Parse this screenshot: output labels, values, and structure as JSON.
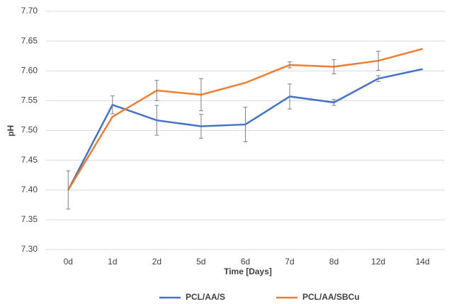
{
  "chart_data": {
    "type": "line",
    "x_label": "Time [Days]",
    "y_label": "pH",
    "categories": [
      "0d",
      "1d",
      "2d",
      "5d",
      "6d",
      "7d",
      "8d",
      "12d",
      "14d"
    ],
    "series": [
      {
        "name": "PCL/AA/S",
        "color": "#4472c4",
        "values": [
          7.4,
          7.543,
          7.517,
          7.507,
          7.51,
          7.557,
          7.547,
          7.587,
          7.603
        ],
        "errors": [
          0.032,
          0.015,
          0.025,
          0.02,
          0.029,
          0.021,
          0.005,
          0.005,
          null
        ]
      },
      {
        "name": "PCL/AA/SBCu",
        "color": "#ed7d31",
        "values": [
          7.4,
          7.523,
          7.567,
          7.56,
          7.58,
          7.61,
          7.607,
          7.617,
          7.637
        ],
        "errors": [
          null,
          null,
          0.017,
          0.027,
          null,
          0.005,
          0.012,
          0.016,
          null
        ]
      }
    ],
    "error_color": "#7f7f7f",
    "ylim": [
      7.3,
      7.7
    ],
    "yticks": [
      {
        "value": 7.3,
        "label": "7.30"
      },
      7.35,
      {
        "value": 7.4,
        "label": "7.40"
      },
      7.45,
      {
        "value": 7.5,
        "label": "7.50"
      },
      7.55,
      {
        "value": 7.6,
        "label": "7.60"
      },
      7.65,
      {
        "value": 7.7,
        "label": "7.70"
      }
    ],
    "grid": true,
    "legend": "bottom"
  }
}
